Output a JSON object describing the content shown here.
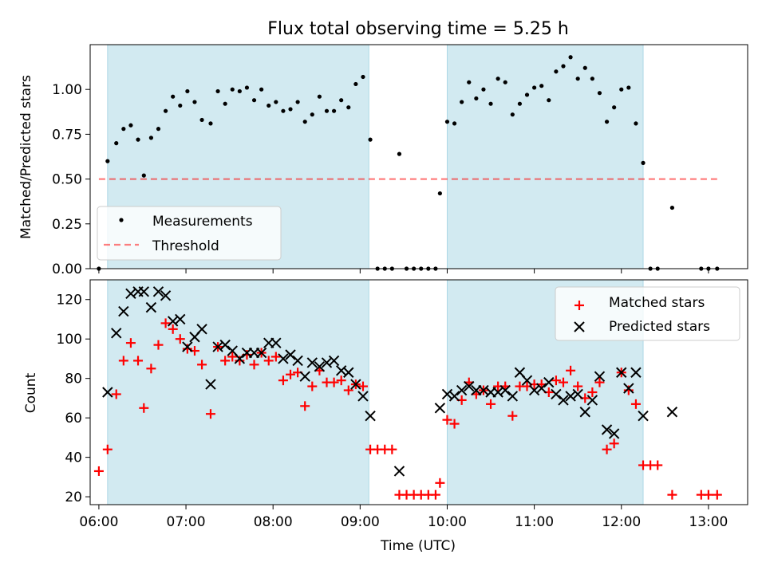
{
  "title": "Flux total observing time = 5.25 h",
  "colors": {
    "shade": "#add8e6",
    "measurement": "#000000",
    "threshold": "#ff0000",
    "matched": "#ff0000",
    "predicted": "#000000"
  },
  "chart_data": [
    {
      "type": "scatter",
      "ylabel": "Matched/Predicted stars",
      "xlim": [
        "05:54",
        "13:27"
      ],
      "ylim": [
        0,
        1.25
      ],
      "yticks": [
        "0.00",
        "0.25",
        "0.50",
        "0.75",
        "1.00"
      ],
      "ytick_values": [
        0,
        0.25,
        0.5,
        0.75,
        1.0
      ],
      "shaded_intervals": [
        [
          "06:06",
          "09:06"
        ],
        [
          "10:00",
          "12:15"
        ]
      ],
      "threshold": {
        "value": 0.5,
        "x_range": [
          "06:00",
          "13:06"
        ]
      },
      "legend": {
        "location": "lower-left",
        "entries": [
          "Measurements",
          "Threshold"
        ]
      },
      "series": [
        {
          "name": "Measurements",
          "points": [
            [
              "06:00",
              0.0
            ],
            [
              "06:06",
              0.6
            ],
            [
              "06:12",
              0.7
            ],
            [
              "06:17",
              0.78
            ],
            [
              "06:22",
              0.8
            ],
            [
              "06:27",
              0.72
            ],
            [
              "06:31",
              0.52
            ],
            [
              "06:36",
              0.73
            ],
            [
              "06:41",
              0.78
            ],
            [
              "06:46",
              0.88
            ],
            [
              "06:51",
              0.96
            ],
            [
              "06:56",
              0.91
            ],
            [
              "07:01",
              0.99
            ],
            [
              "07:06",
              0.93
            ],
            [
              "07:11",
              0.83
            ],
            [
              "07:17",
              0.81
            ],
            [
              "07:22",
              0.99
            ],
            [
              "07:27",
              0.92
            ],
            [
              "07:32",
              1.0
            ],
            [
              "07:37",
              0.99
            ],
            [
              "07:42",
              1.01
            ],
            [
              "07:47",
              0.94
            ],
            [
              "07:52",
              1.0
            ],
            [
              "07:57",
              0.91
            ],
            [
              "08:02",
              0.93
            ],
            [
              "08:07",
              0.88
            ],
            [
              "08:12",
              0.89
            ],
            [
              "08:17",
              0.93
            ],
            [
              "08:22",
              0.82
            ],
            [
              "08:27",
              0.86
            ],
            [
              "08:32",
              0.96
            ],
            [
              "08:37",
              0.88
            ],
            [
              "08:42",
              0.88
            ],
            [
              "08:47",
              0.94
            ],
            [
              "08:52",
              0.9
            ],
            [
              "08:57",
              1.03
            ],
            [
              "09:02",
              1.07
            ],
            [
              "09:07",
              0.72
            ],
            [
              "09:12",
              0.0
            ],
            [
              "09:17",
              0.0
            ],
            [
              "09:22",
              0.0
            ],
            [
              "09:27",
              0.64
            ],
            [
              "09:32",
              0.0
            ],
            [
              "09:37",
              0.0
            ],
            [
              "09:42",
              0.0
            ],
            [
              "09:47",
              0.0
            ],
            [
              "09:52",
              0.0
            ],
            [
              "09:55",
              0.42
            ],
            [
              "10:00",
              0.82
            ],
            [
              "10:05",
              0.81
            ],
            [
              "10:10",
              0.93
            ],
            [
              "10:15",
              1.04
            ],
            [
              "10:20",
              0.95
            ],
            [
              "10:25",
              1.0
            ],
            [
              "10:30",
              0.92
            ],
            [
              "10:35",
              1.06
            ],
            [
              "10:40",
              1.04
            ],
            [
              "10:45",
              0.86
            ],
            [
              "10:50",
              0.92
            ],
            [
              "10:55",
              0.97
            ],
            [
              "11:00",
              1.01
            ],
            [
              "11:05",
              1.02
            ],
            [
              "11:10",
              0.94
            ],
            [
              "11:15",
              1.1
            ],
            [
              "11:20",
              1.13
            ],
            [
              "11:25",
              1.18
            ],
            [
              "11:30",
              1.06
            ],
            [
              "11:35",
              1.12
            ],
            [
              "11:40",
              1.06
            ],
            [
              "11:45",
              0.98
            ],
            [
              "11:50",
              0.82
            ],
            [
              "11:55",
              0.9
            ],
            [
              "12:00",
              1.0
            ],
            [
              "12:05",
              1.01
            ],
            [
              "12:10",
              0.81
            ],
            [
              "12:15",
              0.59
            ],
            [
              "12:20",
              0.0
            ],
            [
              "12:25",
              0.0
            ],
            [
              "12:35",
              0.34
            ],
            [
              "12:55",
              0.0
            ],
            [
              "13:00",
              0.0
            ],
            [
              "13:06",
              0.0
            ]
          ]
        },
        {
          "name": "Threshold",
          "points": [
            [
              "06:00",
              0.5
            ],
            [
              "13:06",
              0.5
            ]
          ]
        }
      ]
    },
    {
      "type": "scatter",
      "xlabel": "Time (UTC)",
      "ylabel": "Count",
      "xlim": [
        "05:54",
        "13:27"
      ],
      "ylim": [
        16,
        130
      ],
      "xticks": [
        "06:00",
        "07:00",
        "08:00",
        "09:00",
        "10:00",
        "11:00",
        "12:00",
        "13:00"
      ],
      "yticks": [
        "20",
        "40",
        "60",
        "80",
        "100",
        "120"
      ],
      "ytick_values": [
        20,
        40,
        60,
        80,
        100,
        120
      ],
      "shaded_intervals": [
        [
          "06:06",
          "09:06"
        ],
        [
          "10:00",
          "12:15"
        ]
      ],
      "legend": {
        "location": "top-right",
        "entries": [
          "Matched stars",
          "Predicted stars"
        ]
      },
      "series": [
        {
          "name": "Matched stars",
          "marker": "+",
          "points": [
            [
              "06:00",
              33
            ],
            [
              "06:06",
              44
            ],
            [
              "06:12",
              72
            ],
            [
              "06:17",
              89
            ],
            [
              "06:22",
              98
            ],
            [
              "06:27",
              89
            ],
            [
              "06:31",
              65
            ],
            [
              "06:36",
              85
            ],
            [
              "06:41",
              97
            ],
            [
              "06:46",
              108
            ],
            [
              "06:51",
              105
            ],
            [
              "06:56",
              100
            ],
            [
              "07:01",
              95
            ],
            [
              "07:06",
              94
            ],
            [
              "07:11",
              87
            ],
            [
              "07:17",
              62
            ],
            [
              "07:22",
              96
            ],
            [
              "07:27",
              89
            ],
            [
              "07:32",
              91
            ],
            [
              "07:37",
              89
            ],
            [
              "07:42",
              92
            ],
            [
              "07:47",
              87
            ],
            [
              "07:52",
              93
            ],
            [
              "07:57",
              89
            ],
            [
              "08:02",
              91
            ],
            [
              "08:07",
              79
            ],
            [
              "08:12",
              82
            ],
            [
              "08:17",
              83
            ],
            [
              "08:22",
              66
            ],
            [
              "08:27",
              76
            ],
            [
              "08:32",
              84
            ],
            [
              "08:37",
              78
            ],
            [
              "08:42",
              78
            ],
            [
              "08:47",
              79
            ],
            [
              "08:52",
              74
            ],
            [
              "08:57",
              77
            ],
            [
              "09:02",
              76
            ],
            [
              "09:07",
              44
            ],
            [
              "09:12",
              44
            ],
            [
              "09:17",
              44
            ],
            [
              "09:22",
              44
            ],
            [
              "09:27",
              21
            ],
            [
              "09:32",
              21
            ],
            [
              "09:37",
              21
            ],
            [
              "09:42",
              21
            ],
            [
              "09:47",
              21
            ],
            [
              "09:52",
              21
            ],
            [
              "09:55",
              27
            ],
            [
              "10:00",
              59
            ],
            [
              "10:05",
              57
            ],
            [
              "10:10",
              69
            ],
            [
              "10:15",
              78
            ],
            [
              "10:20",
              72
            ],
            [
              "10:25",
              74
            ],
            [
              "10:30",
              67
            ],
            [
              "10:35",
              76
            ],
            [
              "10:40",
              76
            ],
            [
              "10:45",
              61
            ],
            [
              "10:50",
              76
            ],
            [
              "10:55",
              76
            ],
            [
              "11:00",
              77
            ],
            [
              "11:05",
              77
            ],
            [
              "11:10",
              73
            ],
            [
              "11:15",
              79
            ],
            [
              "11:20",
              78
            ],
            [
              "11:25",
              84
            ],
            [
              "11:30",
              76
            ],
            [
              "11:35",
              70
            ],
            [
              "11:40",
              73
            ],
            [
              "11:45",
              78
            ],
            [
              "11:50",
              44
            ],
            [
              "11:55",
              47
            ],
            [
              "12:00",
              83
            ],
            [
              "12:05",
              74
            ],
            [
              "12:10",
              67
            ],
            [
              "12:15",
              36
            ],
            [
              "12:20",
              36
            ],
            [
              "12:25",
              36
            ],
            [
              "12:35",
              21
            ],
            [
              "12:55",
              21
            ],
            [
              "13:00",
              21
            ],
            [
              "13:06",
              21
            ]
          ]
        },
        {
          "name": "Predicted stars",
          "marker": "x",
          "points": [
            [
              "06:06",
              73
            ],
            [
              "06:12",
              103
            ],
            [
              "06:17",
              114
            ],
            [
              "06:22",
              123
            ],
            [
              "06:27",
              124
            ],
            [
              "06:31",
              124
            ],
            [
              "06:36",
              116
            ],
            [
              "06:41",
              124
            ],
            [
              "06:46",
              122
            ],
            [
              "06:51",
              109
            ],
            [
              "06:56",
              110
            ],
            [
              "07:01",
              96
            ],
            [
              "07:06",
              101
            ],
            [
              "07:11",
              105
            ],
            [
              "07:17",
              77
            ],
            [
              "07:22",
              96
            ],
            [
              "07:27",
              97
            ],
            [
              "07:32",
              94
            ],
            [
              "07:37",
              90
            ],
            [
              "07:42",
              93
            ],
            [
              "07:47",
              93
            ],
            [
              "07:52",
              93
            ],
            [
              "07:57",
              98
            ],
            [
              "08:02",
              98
            ],
            [
              "08:07",
              90
            ],
            [
              "08:12",
              92
            ],
            [
              "08:17",
              89
            ],
            [
              "08:22",
              81
            ],
            [
              "08:27",
              88
            ],
            [
              "08:32",
              86
            ],
            [
              "08:37",
              88
            ],
            [
              "08:42",
              89
            ],
            [
              "08:47",
              84
            ],
            [
              "08:52",
              83
            ],
            [
              "08:57",
              77
            ],
            [
              "09:02",
              71
            ],
            [
              "09:07",
              61
            ],
            [
              "09:27",
              33
            ],
            [
              "09:55",
              65
            ],
            [
              "10:00",
              72
            ],
            [
              "10:05",
              71
            ],
            [
              "10:10",
              74
            ],
            [
              "10:15",
              76
            ],
            [
              "10:20",
              74
            ],
            [
              "10:25",
              74
            ],
            [
              "10:30",
              73
            ],
            [
              "10:35",
              73
            ],
            [
              "10:40",
              74
            ],
            [
              "10:45",
              71
            ],
            [
              "10:50",
              83
            ],
            [
              "10:55",
              79
            ],
            [
              "11:00",
              74
            ],
            [
              "11:05",
              75
            ],
            [
              "11:10",
              78
            ],
            [
              "11:15",
              72
            ],
            [
              "11:20",
              69
            ],
            [
              "11:25",
              71
            ],
            [
              "11:30",
              72
            ],
            [
              "11:35",
              63
            ],
            [
              "11:40",
              69
            ],
            [
              "11:45",
              81
            ],
            [
              "11:50",
              54
            ],
            [
              "11:55",
              52
            ],
            [
              "12:00",
              83
            ],
            [
              "12:05",
              75
            ],
            [
              "12:10",
              83
            ],
            [
              "12:15",
              61
            ],
            [
              "12:35",
              63
            ]
          ]
        }
      ]
    }
  ]
}
